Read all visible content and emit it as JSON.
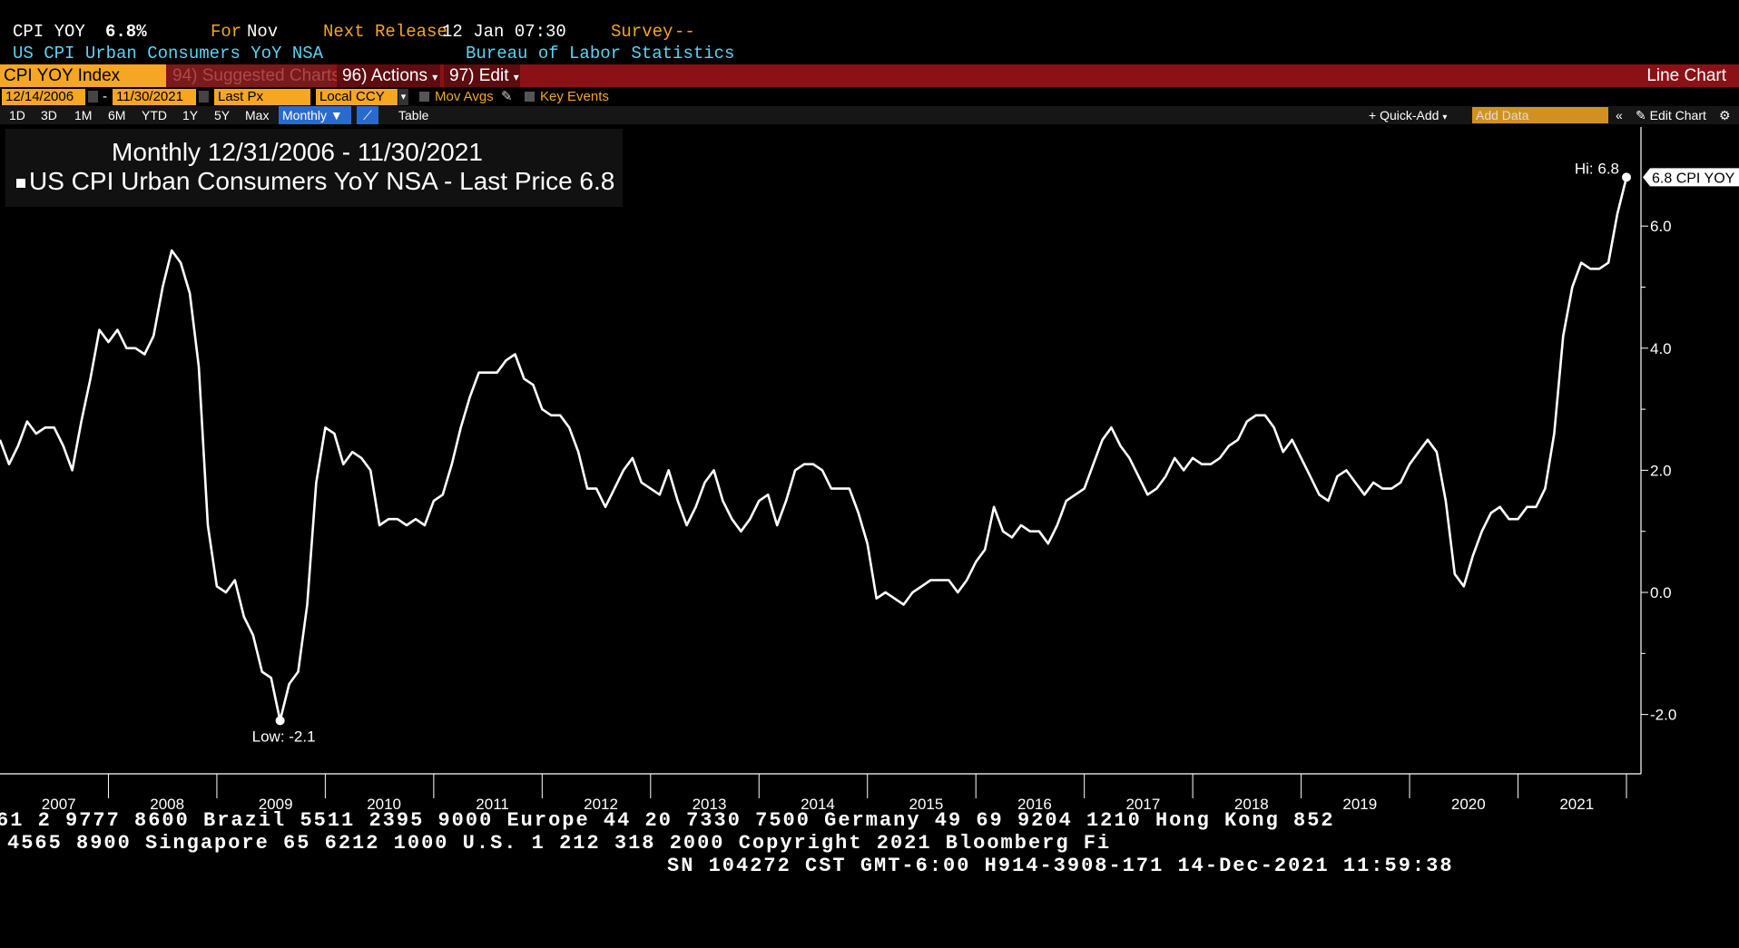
{
  "header": {
    "ticker": "CPI YOY",
    "value": "6.8%",
    "for_label": "For",
    "for_value": "Nov",
    "next_release_label": "Next Release",
    "next_release_value": "12 Jan 07:30",
    "survey_label": "Survey",
    "survey_value": "--",
    "description": "US CPI Urban Consumers YoY NSA",
    "source": "Bureau of Labor Statistics"
  },
  "toolbar": {
    "security": "CPI YOY Index",
    "suggested": "94) Suggested Charts",
    "actions": "96) Actions",
    "edit": "97) Edit",
    "chart_type": "Line Chart",
    "start_date": "12/14/2006",
    "end_date": "11/30/2021",
    "field": "Last Px",
    "currency": "Local CCY",
    "mov_avgs": "Mov Avgs",
    "key_events": "Key Events",
    "ranges": [
      "1D",
      "3D",
      "1M",
      "6M",
      "YTD",
      "1Y",
      "5Y",
      "Max"
    ],
    "period": "Monthly",
    "table": "Table",
    "quick_add": "+ Quick-Add",
    "add_data_placeholder": "Add Data",
    "edit_chart": "Edit Chart"
  },
  "legend": {
    "title": "Monthly 12/31/2006 - 11/30/2021",
    "series": "US CPI Urban Consumers YoY NSA - Last Price 6.8"
  },
  "colors": {
    "accent": "#f5a623",
    "bar": "#8b1116",
    "line": "#ffffff",
    "header_cyan": "#5fd3f0"
  },
  "chart_data": {
    "type": "line",
    "x_range": [
      "2006-12",
      "2021-11"
    ],
    "ylim": [
      -3,
      7.8
    ],
    "y_ticks": [
      "6.0",
      "4.0",
      "2.0",
      "0.0",
      "-2.0"
    ],
    "x_ticks": [
      "2007",
      "2008",
      "2009",
      "2010",
      "2011",
      "2012",
      "2013",
      "2014",
      "2015",
      "2016",
      "2017",
      "2018",
      "2019",
      "2020",
      "2021"
    ],
    "annotations": {
      "hi": "Hi: 6.8",
      "low": "Low: -2.1",
      "last_tag": "6.8 CPI YOY"
    },
    "series": [
      {
        "start": "2006-12",
        "values": [
          2.5,
          2.1,
          2.4,
          2.8,
          2.6,
          2.7,
          2.7,
          2.4,
          2.0,
          2.8,
          3.5,
          4.3,
          4.1,
          4.3,
          4.0,
          4.0,
          3.9,
          4.2,
          5.0,
          5.6,
          5.4,
          4.9,
          3.7,
          1.1,
          0.1,
          0.0,
          0.2,
          -0.4,
          -0.7,
          -1.3,
          -1.4,
          -2.1,
          -1.5,
          -1.3,
          -0.2,
          1.8,
          2.7,
          2.6,
          2.1,
          2.3,
          2.2,
          2.0,
          1.1,
          1.2,
          1.2,
          1.1,
          1.2,
          1.1,
          1.5,
          1.6,
          2.1,
          2.7,
          3.2,
          3.6,
          3.6,
          3.6,
          3.8,
          3.9,
          3.5,
          3.4,
          3.0,
          2.9,
          2.9,
          2.7,
          2.3,
          1.7,
          1.7,
          1.4,
          1.7,
          2.0,
          2.2,
          1.8,
          1.7,
          1.6,
          2.0,
          1.5,
          1.1,
          1.4,
          1.8,
          2.0,
          1.5,
          1.2,
          1.0,
          1.2,
          1.5,
          1.6,
          1.1,
          1.5,
          2.0,
          2.1,
          2.1,
          2.0,
          1.7,
          1.7,
          1.7,
          1.3,
          0.8,
          -0.1,
          0.0,
          -0.1,
          -0.2,
          0.0,
          0.1,
          0.2,
          0.2,
          0.2,
          0.0,
          0.2,
          0.5,
          0.7,
          1.4,
          1.0,
          0.9,
          1.1,
          1.0,
          1.0,
          0.8,
          1.1,
          1.5,
          1.6,
          1.7,
          2.1,
          2.5,
          2.7,
          2.4,
          2.2,
          1.9,
          1.6,
          1.7,
          1.9,
          2.2,
          2.0,
          2.2,
          2.1,
          2.1,
          2.2,
          2.4,
          2.5,
          2.8,
          2.9,
          2.9,
          2.7,
          2.3,
          2.5,
          2.2,
          1.9,
          1.6,
          1.5,
          1.9,
          2.0,
          1.8,
          1.6,
          1.8,
          1.7,
          1.7,
          1.8,
          2.1,
          2.3,
          2.5,
          2.3,
          1.5,
          0.3,
          0.1,
          0.6,
          1.0,
          1.3,
          1.4,
          1.2,
          1.2,
          1.4,
          1.4,
          1.7,
          2.6,
          4.2,
          5.0,
          5.4,
          5.3,
          5.3,
          5.4,
          6.2,
          6.8
        ]
      }
    ]
  },
  "footer": {
    "line1": "61 2 9777 8600 Brazil 5511 2395 9000 Europe 44 20 7330 7500 Germany 49 69 9204 1210 Hong Kong 852",
    "line2": "4565 8900       Singapore 65 6212 1000       U.S. 1 212 318 2000       Copyright 2021 Bloomberg Fi",
    "line3": "SN 104272 CST  GMT-6:00 H914-3908-171 14-Dec-2021 11:59:38"
  }
}
